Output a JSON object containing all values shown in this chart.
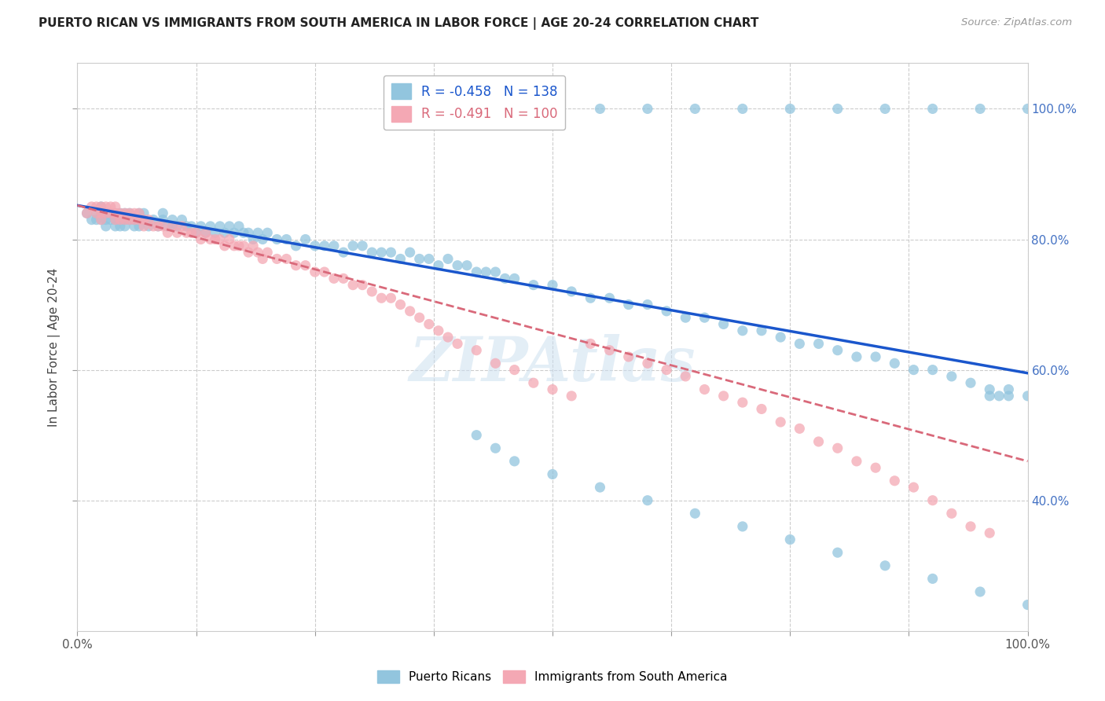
{
  "title": "PUERTO RICAN VS IMMIGRANTS FROM SOUTH AMERICA IN LABOR FORCE | AGE 20-24 CORRELATION CHART",
  "source": "Source: ZipAtlas.com",
  "ylabel": "In Labor Force | Age 20-24",
  "ytick_labels": [
    "100.0%",
    "80.0%",
    "60.0%",
    "40.0%"
  ],
  "ytick_values": [
    1.0,
    0.8,
    0.6,
    0.4
  ],
  "xlim": [
    0.0,
    1.0
  ],
  "ylim": [
    0.2,
    1.07
  ],
  "blue_R": "-0.458",
  "blue_N": "138",
  "pink_R": "-0.491",
  "pink_N": "100",
  "blue_color": "#92c5de",
  "pink_color": "#f4a8b4",
  "trendline_blue": "#1a56cc",
  "trendline_pink": "#d9697a",
  "legend_label_blue": "Puerto Ricans",
  "legend_label_pink": "Immigrants from South America",
  "watermark": "ZIPAtlas",
  "blue_trend_y_start": 0.852,
  "blue_trend_y_end": 0.595,
  "pink_trend_y_start": 0.852,
  "pink_trend_y_end": 0.46,
  "xtick_positions": [
    0.0,
    0.125,
    0.25,
    0.375,
    0.5,
    0.625,
    0.75,
    0.875,
    1.0
  ],
  "blue_x": [
    0.01,
    0.015,
    0.02,
    0.02,
    0.025,
    0.025,
    0.025,
    0.03,
    0.03,
    0.03,
    0.035,
    0.035,
    0.04,
    0.04,
    0.04,
    0.045,
    0.045,
    0.045,
    0.05,
    0.05,
    0.05,
    0.055,
    0.055,
    0.06,
    0.06,
    0.065,
    0.065,
    0.07,
    0.07,
    0.075,
    0.08,
    0.085,
    0.09,
    0.09,
    0.095,
    0.1,
    0.1,
    0.105,
    0.11,
    0.115,
    0.12,
    0.125,
    0.13,
    0.135,
    0.14,
    0.145,
    0.15,
    0.155,
    0.16,
    0.165,
    0.17,
    0.175,
    0.18,
    0.185,
    0.19,
    0.195,
    0.2,
    0.21,
    0.22,
    0.23,
    0.24,
    0.25,
    0.26,
    0.27,
    0.28,
    0.29,
    0.3,
    0.31,
    0.32,
    0.33,
    0.34,
    0.35,
    0.36,
    0.37,
    0.38,
    0.39,
    0.4,
    0.41,
    0.42,
    0.43,
    0.44,
    0.45,
    0.46,
    0.48,
    0.5,
    0.52,
    0.54,
    0.56,
    0.58,
    0.6,
    0.62,
    0.64,
    0.66,
    0.68,
    0.7,
    0.72,
    0.74,
    0.76,
    0.78,
    0.8,
    0.82,
    0.84,
    0.86,
    0.88,
    0.9,
    0.92,
    0.94,
    0.96,
    0.98,
    1.0,
    0.42,
    0.44,
    0.46,
    0.5,
    0.55,
    0.6,
    0.65,
    0.7,
    0.75,
    0.8,
    0.85,
    0.9,
    0.95,
    1.0,
    0.5,
    0.55,
    0.6,
    0.65,
    0.7,
    0.75,
    0.8,
    0.85,
    0.9,
    0.95,
    1.0,
    0.96,
    0.97,
    0.98
  ],
  "blue_y": [
    0.84,
    0.83,
    0.83,
    0.84,
    0.83,
    0.84,
    0.85,
    0.82,
    0.83,
    0.84,
    0.83,
    0.84,
    0.83,
    0.82,
    0.84,
    0.83,
    0.84,
    0.82,
    0.83,
    0.84,
    0.82,
    0.83,
    0.84,
    0.82,
    0.83,
    0.84,
    0.82,
    0.83,
    0.84,
    0.82,
    0.83,
    0.82,
    0.83,
    0.84,
    0.82,
    0.82,
    0.83,
    0.82,
    0.83,
    0.82,
    0.82,
    0.81,
    0.82,
    0.81,
    0.82,
    0.81,
    0.82,
    0.81,
    0.82,
    0.81,
    0.82,
    0.81,
    0.81,
    0.8,
    0.81,
    0.8,
    0.81,
    0.8,
    0.8,
    0.79,
    0.8,
    0.79,
    0.79,
    0.79,
    0.78,
    0.79,
    0.79,
    0.78,
    0.78,
    0.78,
    0.77,
    0.78,
    0.77,
    0.77,
    0.76,
    0.77,
    0.76,
    0.76,
    0.75,
    0.75,
    0.75,
    0.74,
    0.74,
    0.73,
    0.73,
    0.72,
    0.71,
    0.71,
    0.7,
    0.7,
    0.69,
    0.68,
    0.68,
    0.67,
    0.66,
    0.66,
    0.65,
    0.64,
    0.64,
    0.63,
    0.62,
    0.62,
    0.61,
    0.6,
    0.6,
    0.59,
    0.58,
    0.57,
    0.57,
    0.56,
    0.5,
    0.48,
    0.46,
    0.44,
    0.42,
    0.4,
    0.38,
    0.36,
    0.34,
    0.32,
    0.3,
    0.28,
    0.26,
    0.24,
    1.0,
    1.0,
    1.0,
    1.0,
    1.0,
    1.0,
    1.0,
    1.0,
    1.0,
    1.0,
    1.0,
    0.56,
    0.56,
    0.56
  ],
  "pink_x": [
    0.01,
    0.015,
    0.02,
    0.02,
    0.025,
    0.025,
    0.025,
    0.03,
    0.03,
    0.035,
    0.035,
    0.04,
    0.04,
    0.04,
    0.045,
    0.045,
    0.05,
    0.05,
    0.055,
    0.055,
    0.06,
    0.06,
    0.065,
    0.065,
    0.07,
    0.07,
    0.075,
    0.08,
    0.085,
    0.09,
    0.095,
    0.1,
    0.105,
    0.11,
    0.115,
    0.12,
    0.125,
    0.13,
    0.135,
    0.14,
    0.145,
    0.15,
    0.155,
    0.16,
    0.165,
    0.17,
    0.175,
    0.18,
    0.185,
    0.19,
    0.195,
    0.2,
    0.21,
    0.22,
    0.23,
    0.24,
    0.25,
    0.26,
    0.27,
    0.28,
    0.29,
    0.3,
    0.31,
    0.32,
    0.33,
    0.34,
    0.35,
    0.36,
    0.37,
    0.38,
    0.39,
    0.4,
    0.42,
    0.44,
    0.46,
    0.48,
    0.5,
    0.52,
    0.54,
    0.56,
    0.58,
    0.6,
    0.62,
    0.64,
    0.66,
    0.68,
    0.7,
    0.72,
    0.74,
    0.76,
    0.78,
    0.8,
    0.82,
    0.84,
    0.86,
    0.88,
    0.9,
    0.92,
    0.94,
    0.96
  ],
  "pink_y": [
    0.84,
    0.85,
    0.84,
    0.85,
    0.84,
    0.85,
    0.83,
    0.84,
    0.85,
    0.84,
    0.85,
    0.84,
    0.83,
    0.85,
    0.84,
    0.83,
    0.84,
    0.83,
    0.84,
    0.83,
    0.84,
    0.83,
    0.84,
    0.83,
    0.83,
    0.82,
    0.83,
    0.82,
    0.82,
    0.82,
    0.81,
    0.82,
    0.81,
    0.82,
    0.81,
    0.81,
    0.81,
    0.8,
    0.81,
    0.8,
    0.8,
    0.8,
    0.79,
    0.8,
    0.79,
    0.79,
    0.79,
    0.78,
    0.79,
    0.78,
    0.77,
    0.78,
    0.77,
    0.77,
    0.76,
    0.76,
    0.75,
    0.75,
    0.74,
    0.74,
    0.73,
    0.73,
    0.72,
    0.71,
    0.71,
    0.7,
    0.69,
    0.68,
    0.67,
    0.66,
    0.65,
    0.64,
    0.63,
    0.61,
    0.6,
    0.58,
    0.57,
    0.56,
    0.64,
    0.63,
    0.62,
    0.61,
    0.6,
    0.59,
    0.57,
    0.56,
    0.55,
    0.54,
    0.52,
    0.51,
    0.49,
    0.48,
    0.46,
    0.45,
    0.43,
    0.42,
    0.4,
    0.38,
    0.36,
    0.35
  ]
}
